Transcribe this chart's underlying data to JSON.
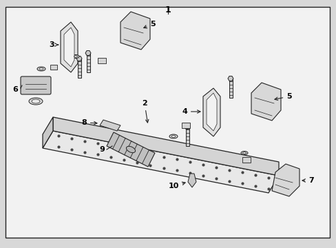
{
  "bg_color": "#d8d8d8",
  "box_color": "#f0f0f0",
  "box_linecolor": "#222222",
  "line_color": "#222222",
  "dot_color": "#444444",
  "figsize": [
    4.89,
    3.6
  ],
  "dpi": 100
}
